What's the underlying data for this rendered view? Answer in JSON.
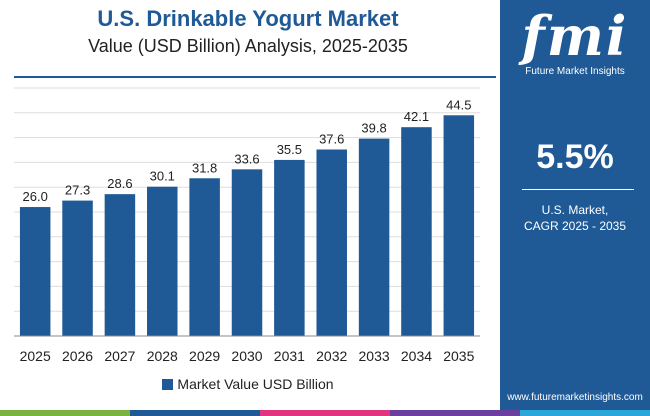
{
  "header": {
    "title": "U.S. Drinkable Yogurt Market",
    "subtitle": "Value (USD Billion) Analysis, 2025-2035"
  },
  "chart_data": {
    "type": "bar",
    "categories": [
      "2025",
      "2026",
      "2027",
      "2028",
      "2029",
      "2030",
      "2031",
      "2032",
      "2033",
      "2034",
      "2035"
    ],
    "series": [
      {
        "name": "Market Value USD Billion",
        "values": [
          26.0,
          27.3,
          28.6,
          30.1,
          31.8,
          33.6,
          35.5,
          37.6,
          39.8,
          42.1,
          44.5
        ],
        "value_labels": [
          "26.0",
          "27.3",
          "28.6",
          "30.1",
          "31.8",
          "33.6",
          "35.5",
          "37.6",
          "39.8",
          "42.1",
          "44.5"
        ]
      }
    ],
    "ylim": [
      0,
      50
    ],
    "grid": true,
    "legend_position": "bottom"
  },
  "legend": {
    "label": "Market Value USD Billion"
  },
  "side_panel": {
    "logo_text": "fmi",
    "logo_tagline": "Future Market Insights",
    "cagr_value": "5.5%",
    "cagr_label_line1": "U.S. Market,",
    "cagr_label_line2": "CAGR 2025 - 2035",
    "website": "www.futuremarketinsights.com"
  },
  "colors": {
    "bar": "#1f5a96",
    "panel": "#1f5a96",
    "stripe": [
      "#7ab342",
      "#1f5a96",
      "#e2357f",
      "#6b3fa0",
      "#2aa6d8"
    ]
  }
}
